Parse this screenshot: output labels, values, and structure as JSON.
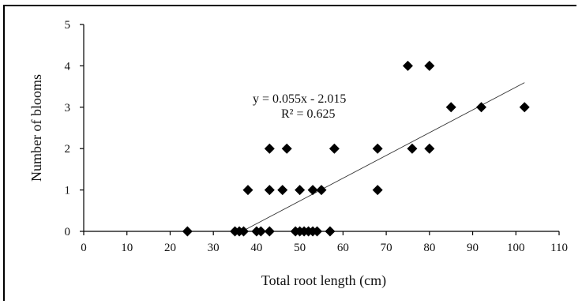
{
  "chart_data": {
    "type": "scatter",
    "title": "",
    "xlabel": "Total root length (cm)",
    "ylabel": "Number of blooms",
    "xlim": [
      0,
      110
    ],
    "ylim": [
      0,
      5
    ],
    "xticks": [
      "0",
      "10",
      "20",
      "30",
      "40",
      "50",
      "60",
      "70",
      "80",
      "90",
      "100",
      "110"
    ],
    "yticks": [
      "0",
      "1",
      "2",
      "3",
      "4",
      "5"
    ],
    "grid": false,
    "points": [
      {
        "x": 24,
        "y": 0
      },
      {
        "x": 35,
        "y": 0
      },
      {
        "x": 36,
        "y": 0
      },
      {
        "x": 37,
        "y": 0
      },
      {
        "x": 38,
        "y": 1
      },
      {
        "x": 40,
        "y": 0
      },
      {
        "x": 41,
        "y": 0
      },
      {
        "x": 43,
        "y": 0
      },
      {
        "x": 43,
        "y": 1
      },
      {
        "x": 43,
        "y": 2
      },
      {
        "x": 46,
        "y": 1
      },
      {
        "x": 47,
        "y": 2
      },
      {
        "x": 49,
        "y": 0
      },
      {
        "x": 50,
        "y": 0
      },
      {
        "x": 50,
        "y": 1
      },
      {
        "x": 51,
        "y": 0
      },
      {
        "x": 52,
        "y": 0
      },
      {
        "x": 53,
        "y": 0
      },
      {
        "x": 53,
        "y": 1
      },
      {
        "x": 54,
        "y": 0
      },
      {
        "x": 55,
        "y": 1
      },
      {
        "x": 57,
        "y": 0
      },
      {
        "x": 58,
        "y": 2
      },
      {
        "x": 68,
        "y": 1
      },
      {
        "x": 68,
        "y": 2
      },
      {
        "x": 75,
        "y": 4
      },
      {
        "x": 76,
        "y": 2
      },
      {
        "x": 80,
        "y": 2
      },
      {
        "x": 80,
        "y": 4
      },
      {
        "x": 85,
        "y": 3
      },
      {
        "x": 92,
        "y": 3
      },
      {
        "x": 102,
        "y": 3
      }
    ],
    "trendline": {
      "slope": 0.055,
      "intercept": -2.015,
      "x_range": [
        36.6,
        102
      ],
      "equation": "y = 0.055x - 2.015",
      "r_squared": "R² = 0.625"
    }
  }
}
